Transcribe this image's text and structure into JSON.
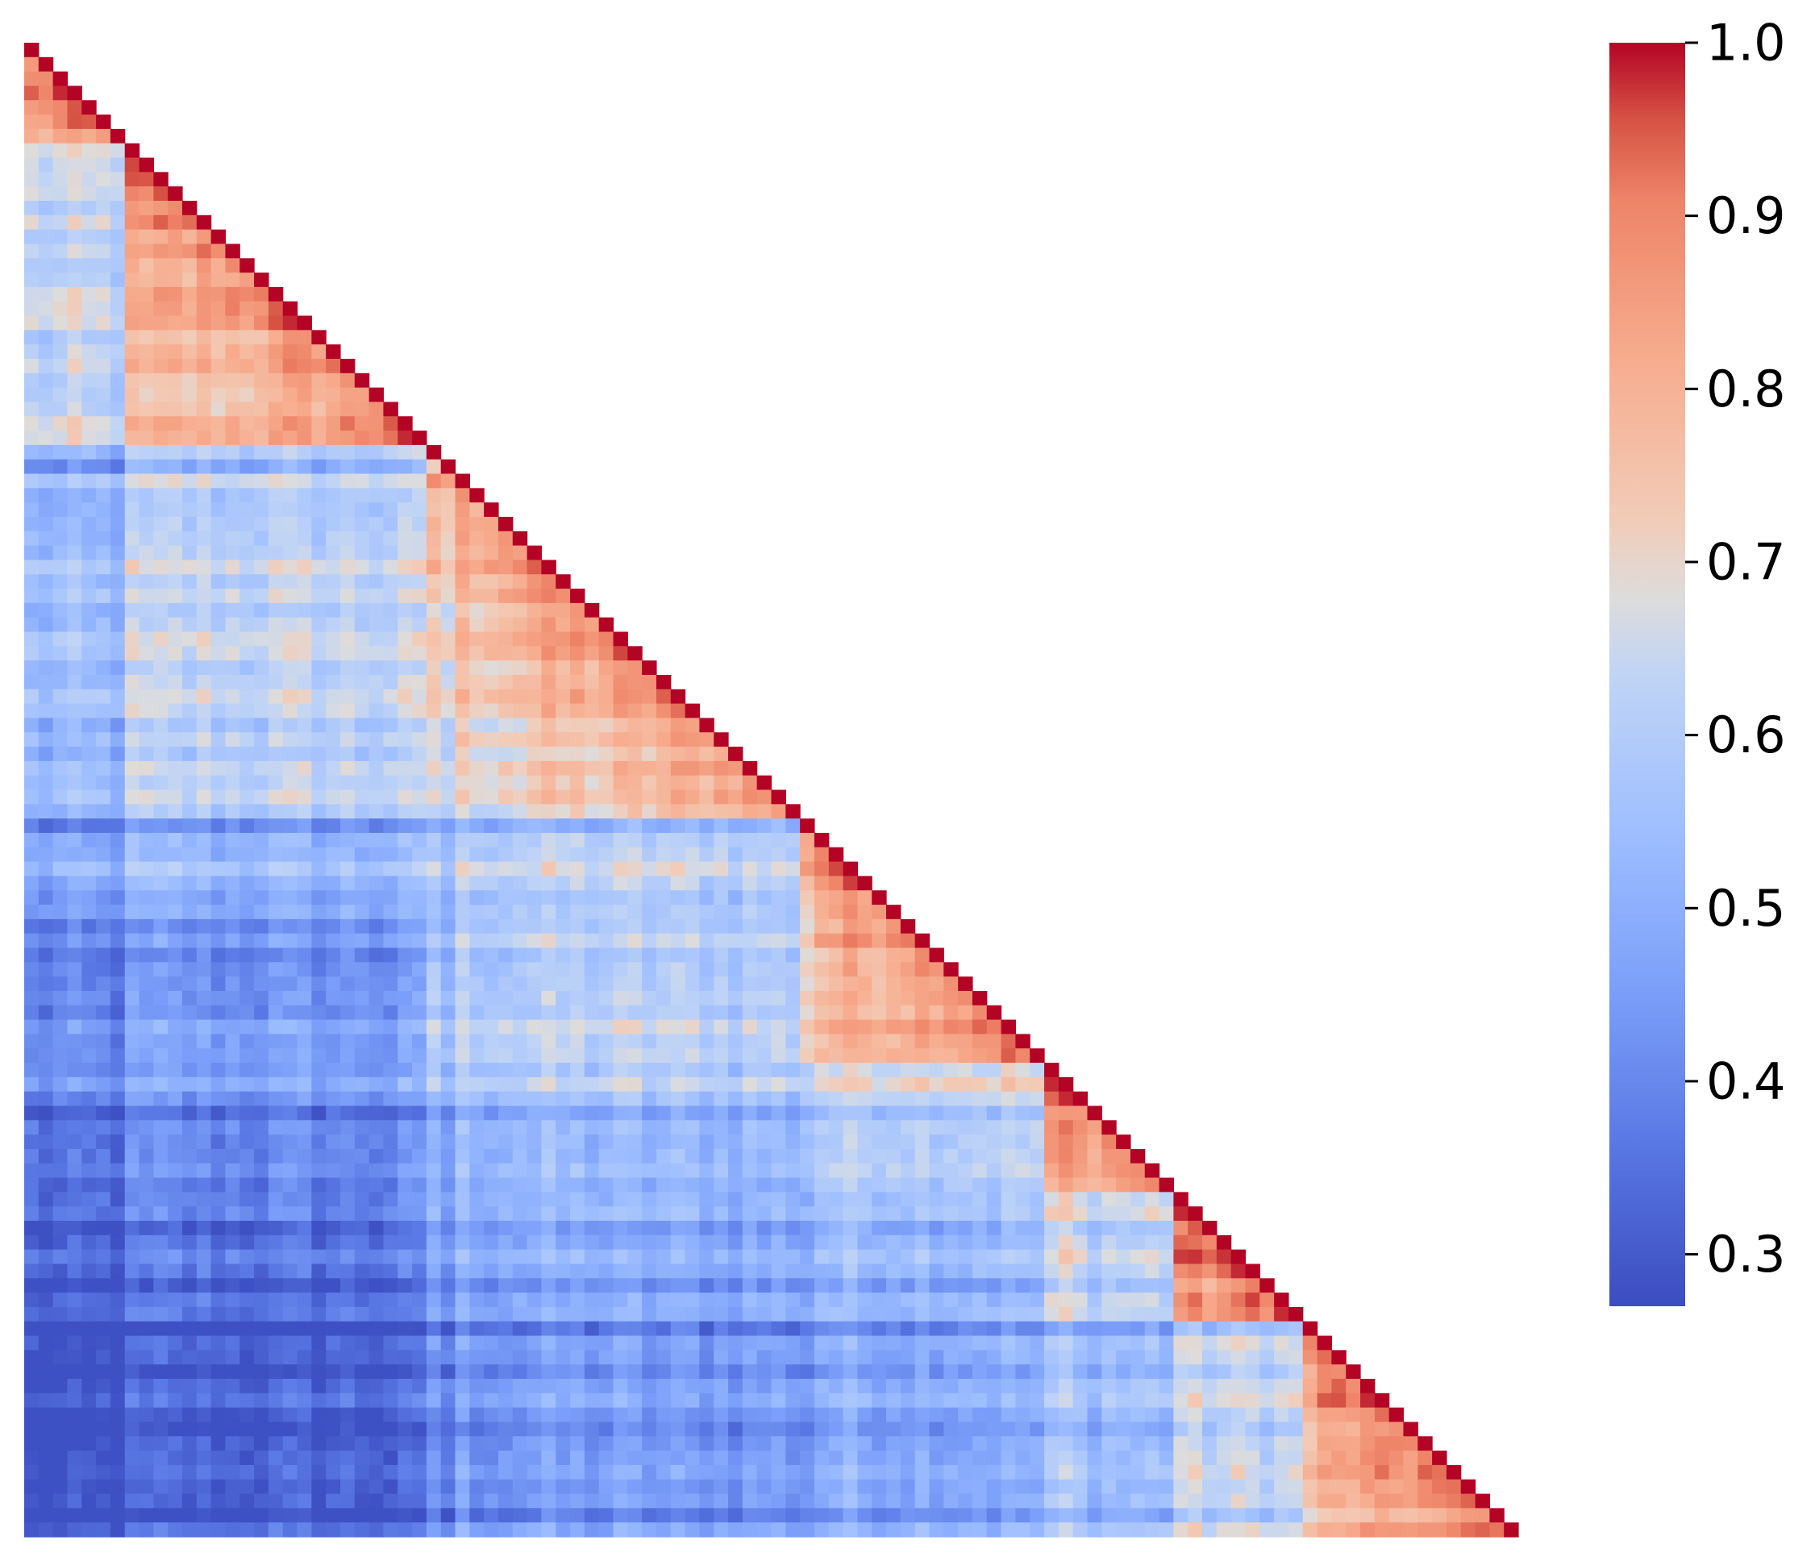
{
  "chart_data": {
    "type": "heatmap",
    "mask": "upper-triangle",
    "n": 104,
    "colormap": "coolwarm",
    "title": "",
    "xlabel": "",
    "ylabel": "",
    "vmin": 0.27,
    "vmax": 1.0,
    "colorbar": {
      "placement": "right",
      "ticks": [
        0.3,
        0.4,
        0.5,
        0.6,
        0.7,
        0.8,
        0.9,
        1.0
      ],
      "tick_labels": [
        "0.3",
        "0.4",
        "0.5",
        "0.6",
        "0.7",
        "0.8",
        "0.9",
        "1.0"
      ]
    },
    "values_note": "lower-triangle correlation values, diagonal = 1.0",
    "blocks": [
      {
        "range": [
          0,
          7
        ],
        "base": 0.8
      },
      {
        "range": [
          7,
          28
        ],
        "base": 0.8
      },
      {
        "range": [
          28,
          54
        ],
        "base": 0.78
      },
      {
        "range": [
          54,
          71
        ],
        "base": 0.82
      },
      {
        "range": [
          71,
          80
        ],
        "base": 0.8
      },
      {
        "range": [
          80,
          89
        ],
        "base": 0.84
      },
      {
        "range": [
          89,
          104
        ],
        "base": 0.8
      }
    ],
    "row_biases": [
      {
        "index": 29,
        "offset": -0.12
      },
      {
        "index": 54,
        "offset": -0.1
      },
      {
        "index": 72,
        "offset": 0.09
      },
      {
        "index": 80,
        "offset": 0.04
      },
      {
        "index": 89,
        "offset": -0.06
      }
    ]
  },
  "colors": {
    "background": "#ffffff",
    "low": "#3b4cc0",
    "mid": "#dddddd",
    "high": "#b40426"
  }
}
